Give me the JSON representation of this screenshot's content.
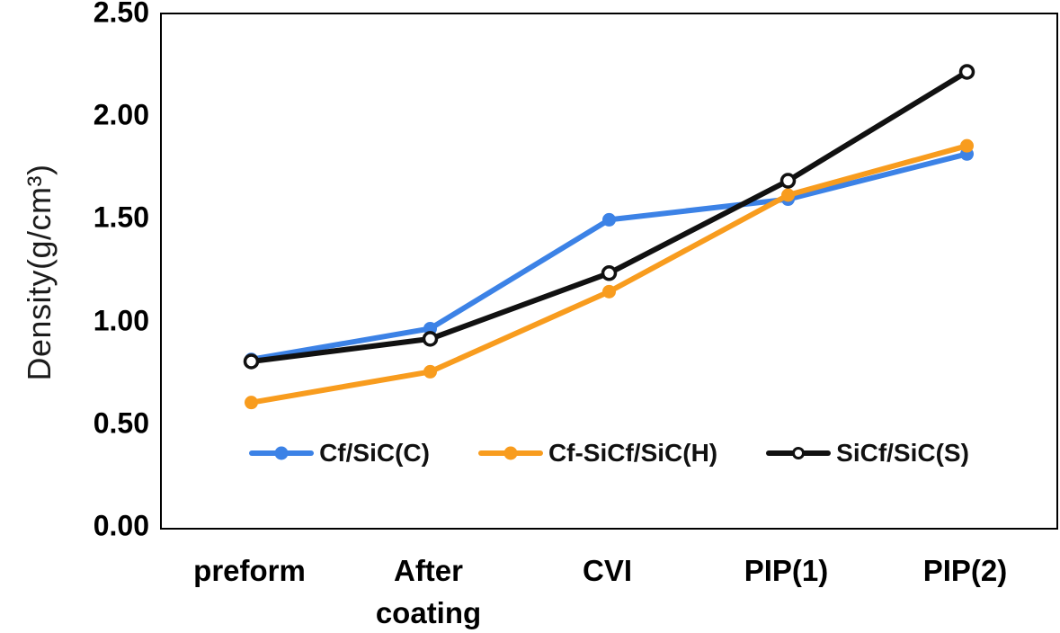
{
  "chart_data": {
    "type": "line",
    "title": "",
    "xlabel": "",
    "ylabel": "Density(g/cm³)",
    "ylim": [
      0,
      2.5
    ],
    "grid": false,
    "legend_position": "bottom-inside",
    "yticks": [
      {
        "value": 2.5,
        "label": "2.50"
      },
      {
        "value": 2.0,
        "label": "2.00"
      },
      {
        "value": 1.5,
        "label": "1.50"
      },
      {
        "value": 1.0,
        "label": "1.00"
      },
      {
        "value": 0.5,
        "label": "0.50"
      },
      {
        "value": 0.0,
        "label": "0.00"
      }
    ],
    "categories": [
      "preform",
      "After\ncoating",
      "CVI",
      "PIP(1)",
      "PIP(2)"
    ],
    "series": [
      {
        "name": "Cf/SiC(C)",
        "color": "#3c82e6",
        "marker": "filled",
        "values": [
          0.82,
          0.97,
          1.5,
          1.6,
          1.82
        ]
      },
      {
        "name": "Cf-SiCf/SiC(H)",
        "color": "#f89c1e",
        "marker": "filled",
        "values": [
          0.61,
          0.76,
          1.15,
          1.62,
          1.86
        ]
      },
      {
        "name": "SiCf/SiC(S)",
        "color": "#111111",
        "marker": "open",
        "values": [
          0.81,
          0.92,
          1.24,
          1.69,
          2.22
        ]
      }
    ]
  }
}
